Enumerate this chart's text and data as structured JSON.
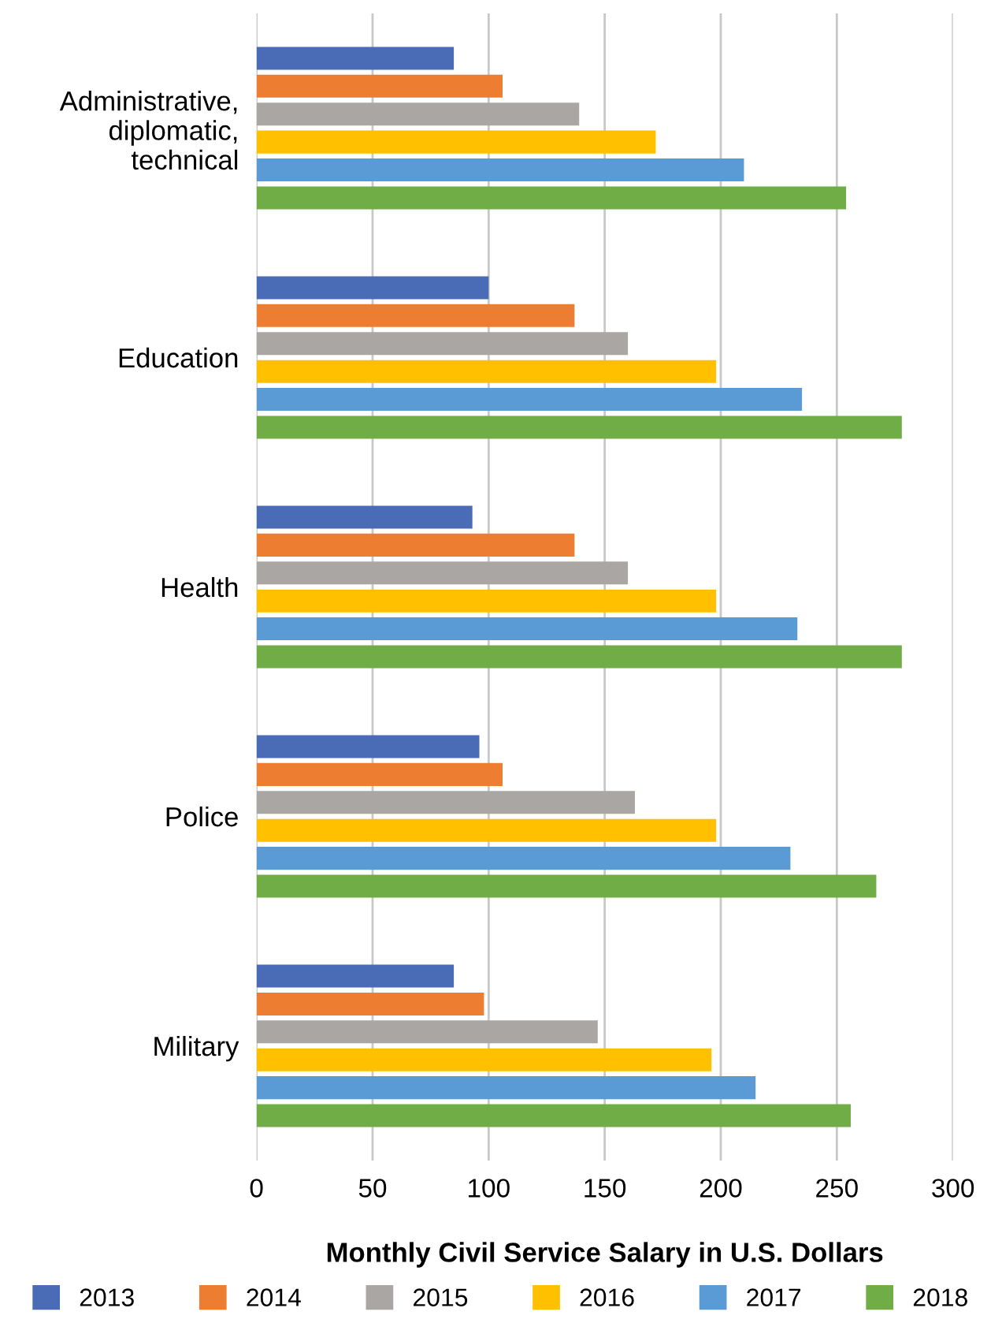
{
  "chart_data": {
    "type": "bar",
    "orientation": "horizontal",
    "xlabel": "Monthly Civil Service Salary in U.S. Dollars",
    "categories": [
      "Administrative,\ndiplomatic,\ntechnical",
      "Education",
      "Health",
      "Police",
      "Military"
    ],
    "series": [
      {
        "name": "2013",
        "color": "#4a6bb5",
        "values": [
          85,
          100,
          93,
          96,
          85
        ]
      },
      {
        "name": "2014",
        "color": "#ed7d31",
        "values": [
          106,
          137,
          137,
          106,
          98
        ]
      },
      {
        "name": "2015",
        "color": "#aaa6a3",
        "values": [
          139,
          160,
          160,
          163,
          147
        ]
      },
      {
        "name": "2016",
        "color": "#ffc000",
        "values": [
          172,
          198,
          198,
          198,
          196
        ]
      },
      {
        "name": "2017",
        "color": "#5b9bd5",
        "values": [
          210,
          235,
          233,
          230,
          215
        ]
      },
      {
        "name": "2018",
        "color": "#70ad47",
        "values": [
          254,
          278,
          278,
          267,
          256
        ]
      }
    ],
    "xlim": [
      0,
      300
    ],
    "xticks": [
      0,
      50,
      100,
      150,
      200,
      250,
      300
    ],
    "grid": "x",
    "legend": "bottom"
  }
}
